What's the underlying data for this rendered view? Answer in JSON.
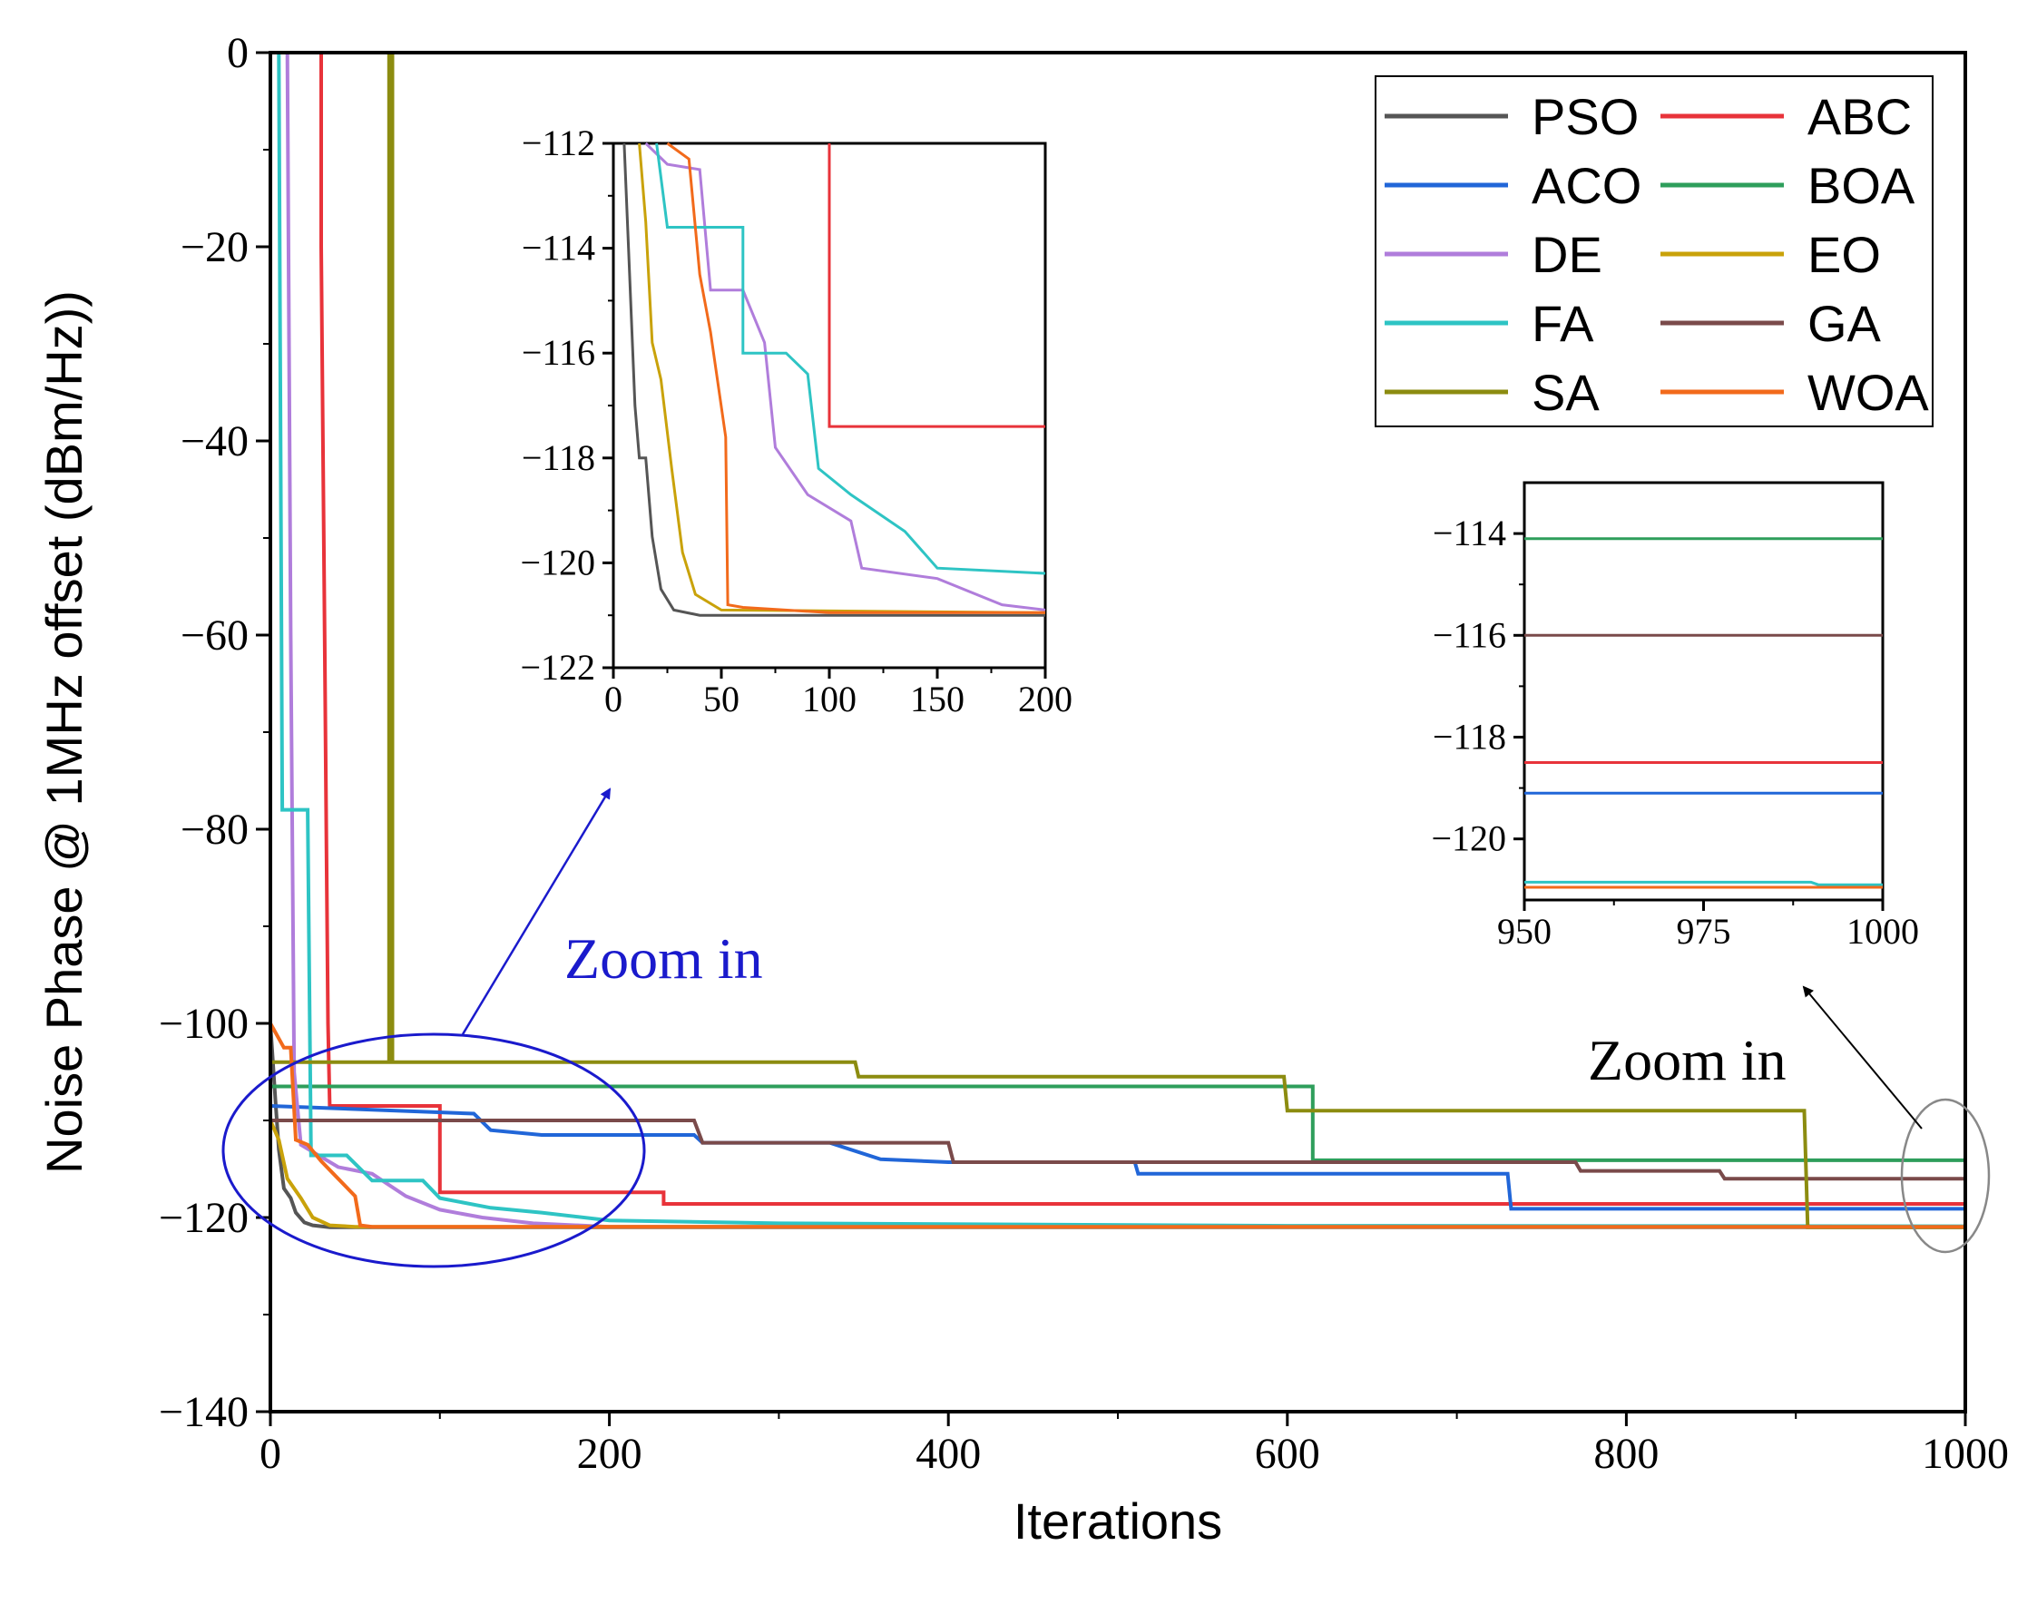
{
  "chart_data": [
    {
      "type": "line",
      "name": "main",
      "xlabel": "Iterations",
      "ylabel": "Noise Phase @ 1MHz offset (dBm/Hz))",
      "xlim": [
        0,
        1000
      ],
      "ylim": [
        -140,
        0
      ],
      "xticks": [
        "0",
        "200",
        "400",
        "600",
        "800",
        "1000"
      ],
      "yticks": [
        "0",
        "−20",
        "−40",
        "−60",
        "−80",
        "−100",
        "−120",
        "−140"
      ],
      "legend_position": "top-right",
      "series": [
        {
          "name": "PSO",
          "color": "#555555",
          "points": [
            [
              0,
              -100
            ],
            [
              3,
              -108
            ],
            [
              5,
              -113
            ],
            [
              8,
              -117
            ],
            [
              12,
              -118
            ],
            [
              15,
              -119.5
            ],
            [
              20,
              -120.5
            ],
            [
              25,
              -120.8
            ],
            [
              35,
              -121
            ],
            [
              1000,
              -121
            ]
          ]
        },
        {
          "name": "ABC",
          "color": "#e8333a",
          "points": [
            [
              0,
              0
            ],
            [
              30,
              0
            ],
            [
              30,
              -20
            ],
            [
              31,
              -40
            ],
            [
              32,
              -60
            ],
            [
              33,
              -80
            ],
            [
              34,
              -100
            ],
            [
              35,
              -108.5
            ],
            [
              100,
              -108.5
            ],
            [
              100,
              -117.4
            ],
            [
              232,
              -117.4
            ],
            [
              232,
              -118.6
            ],
            [
              1000,
              -118.6
            ]
          ]
        },
        {
          "name": "ACO",
          "color": "#2166d8",
          "points": [
            [
              0,
              -108.5
            ],
            [
              120,
              -109.3
            ],
            [
              130,
              -111
            ],
            [
              160,
              -111.5
            ],
            [
              250,
              -111.5
            ],
            [
              255,
              -112.3
            ],
            [
              330,
              -112.3
            ],
            [
              360,
              -114
            ],
            [
              400,
              -114.3
            ],
            [
              510,
              -114.3
            ],
            [
              512,
              -115.5
            ],
            [
              730,
              -115.5
            ],
            [
              732,
              -119.1
            ],
            [
              1000,
              -119.1
            ]
          ]
        },
        {
          "name": "BOA",
          "color": "#2e9e5b",
          "points": [
            [
              0,
              -106.5
            ],
            [
              615,
              -106.5
            ],
            [
              615,
              -114.1
            ],
            [
              1000,
              -114.1
            ]
          ]
        },
        {
          "name": "DE",
          "color": "#b07ddb",
          "points": [
            [
              0,
              0
            ],
            [
              10,
              0
            ],
            [
              12,
              -60
            ],
            [
              14,
              -105
            ],
            [
              18,
              -112.5
            ],
            [
              40,
              -114.8
            ],
            [
              60,
              -115.5
            ],
            [
              80,
              -117.8
            ],
            [
              100,
              -119.2
            ],
            [
              125,
              -120
            ],
            [
              155,
              -120.6
            ],
            [
              200,
              -120.95
            ],
            [
              1000,
              -120.95
            ]
          ]
        },
        {
          "name": "EO",
          "color": "#c9a20a",
          "points": [
            [
              0,
              -110
            ],
            [
              5,
              -112
            ],
            [
              10,
              -116
            ],
            [
              18,
              -118
            ],
            [
              25,
              -120
            ],
            [
              35,
              -120.8
            ],
            [
              50,
              -120.95
            ],
            [
              1000,
              -120.95
            ]
          ]
        },
        {
          "name": "FA",
          "color": "#2ec4c4",
          "points": [
            [
              0,
              0
            ],
            [
              5,
              0
            ],
            [
              7,
              -78
            ],
            [
              22,
              -78
            ],
            [
              24,
              -113.6
            ],
            [
              45,
              -113.6
            ],
            [
              60,
              -116.2
            ],
            [
              90,
              -116.2
            ],
            [
              100,
              -118
            ],
            [
              130,
              -119
            ],
            [
              160,
              -119.5
            ],
            [
              200,
              -120.3
            ],
            [
              300,
              -120.6
            ],
            [
              600,
              -120.85
            ],
            [
              1000,
              -120.9
            ]
          ]
        },
        {
          "name": "GA",
          "color": "#7a4a4a",
          "points": [
            [
              0,
              -110
            ],
            [
              250,
              -110
            ],
            [
              255,
              -112.3
            ],
            [
              400,
              -112.3
            ],
            [
              403,
              -114.3
            ],
            [
              770,
              -114.3
            ],
            [
              773,
              -115.2
            ],
            [
              855,
              -115.2
            ],
            [
              858,
              -116
            ],
            [
              1000,
              -116
            ]
          ]
        },
        {
          "name": "SA",
          "color": "#8c8c10",
          "points": [
            [
              0,
              -104
            ],
            [
              70,
              -104
            ],
            [
              70,
              0
            ],
            [
              72,
              0
            ],
            [
              72,
              -104
            ],
            [
              345,
              -104
            ],
            [
              347,
              -105.5
            ],
            [
              598,
              -105.5
            ],
            [
              600,
              -109
            ],
            [
              905,
              -109
            ],
            [
              907,
              -121
            ],
            [
              1000,
              -121
            ]
          ]
        },
        {
          "name": "WOA",
          "color": "#f26a1b",
          "points": [
            [
              0,
              -100
            ],
            [
              8,
              -102.5
            ],
            [
              12,
              -102.5
            ],
            [
              15,
              -112
            ],
            [
              22,
              -112.5
            ],
            [
              30,
              -114.2
            ],
            [
              40,
              -116
            ],
            [
              50,
              -117.8
            ],
            [
              53,
              -120.8
            ],
            [
              60,
              -120.95
            ],
            [
              1000,
              -120.95
            ]
          ]
        }
      ]
    },
    {
      "type": "line",
      "name": "inset-left",
      "xlim": [
        0,
        200
      ],
      "ylim": [
        -122,
        -112
      ],
      "xticks": [
        "0",
        "50",
        "100",
        "150",
        "200"
      ],
      "yticks": [
        "−112",
        "−114",
        "−116",
        "−118",
        "−120",
        "−122"
      ],
      "series": [
        {
          "name": "PSO",
          "color": "#555555",
          "points": [
            [
              5,
              -112
            ],
            [
              7,
              -114
            ],
            [
              10,
              -117
            ],
            [
              12,
              -118
            ],
            [
              15,
              -118
            ],
            [
              18,
              -119.5
            ],
            [
              22,
              -120.5
            ],
            [
              28,
              -120.9
            ],
            [
              40,
              -121
            ],
            [
              200,
              -121
            ]
          ]
        },
        {
          "name": "ABC",
          "color": "#e8333a",
          "points": [
            [
              100,
              -112
            ],
            [
              100,
              -117.4
            ],
            [
              200,
              -117.4
            ]
          ]
        },
        {
          "name": "DE",
          "color": "#b07ddb",
          "points": [
            [
              15,
              -112
            ],
            [
              25,
              -112.4
            ],
            [
              40,
              -112.5
            ],
            [
              45,
              -114.8
            ],
            [
              60,
              -114.8
            ],
            [
              70,
              -115.8
            ],
            [
              75,
              -117.8
            ],
            [
              90,
              -118.7
            ],
            [
              110,
              -119.2
            ],
            [
              115,
              -120.1
            ],
            [
              150,
              -120.3
            ],
            [
              180,
              -120.8
            ],
            [
              200,
              -120.9
            ]
          ]
        },
        {
          "name": "EO",
          "color": "#c9a20a",
          "points": [
            [
              12,
              -112
            ],
            [
              15,
              -113.5
            ],
            [
              18,
              -115.8
            ],
            [
              22,
              -116.5
            ],
            [
              27,
              -118.2
            ],
            [
              32,
              -119.8
            ],
            [
              38,
              -120.6
            ],
            [
              50,
              -120.9
            ],
            [
              200,
              -120.95
            ]
          ]
        },
        {
          "name": "FA",
          "color": "#2ec4c4",
          "points": [
            [
              20,
              -112
            ],
            [
              25,
              -113.6
            ],
            [
              40,
              -113.6
            ],
            [
              60,
              -113.6
            ],
            [
              60,
              -116
            ],
            [
              80,
              -116
            ],
            [
              90,
              -116.4
            ],
            [
              95,
              -118.2
            ],
            [
              110,
              -118.7
            ],
            [
              135,
              -119.4
            ],
            [
              150,
              -120.1
            ],
            [
              200,
              -120.2
            ]
          ]
        },
        {
          "name": "WOA",
          "color": "#f26a1b",
          "points": [
            [
              25,
              -112
            ],
            [
              35,
              -112.3
            ],
            [
              40,
              -114.5
            ],
            [
              45,
              -115.6
            ],
            [
              52,
              -117.6
            ],
            [
              53,
              -120.8
            ],
            [
              60,
              -120.85
            ],
            [
              100,
              -120.95
            ],
            [
              200,
              -120.95
            ]
          ]
        }
      ]
    },
    {
      "type": "line",
      "name": "inset-right",
      "xlim": [
        950,
        1000
      ],
      "ylim": [
        -121.2,
        -113
      ],
      "xticks": [
        "950",
        "975",
        "1000"
      ],
      "yticks": [
        "−114",
        "−116",
        "−118",
        "−120"
      ],
      "series": [
        {
          "name": "BOA",
          "color": "#2e9e5b",
          "points": [
            [
              950,
              -114.1
            ],
            [
              1000,
              -114.1
            ]
          ]
        },
        {
          "name": "GA",
          "color": "#7a4a4a",
          "points": [
            [
              950,
              -116
            ],
            [
              1000,
              -116
            ]
          ]
        },
        {
          "name": "ABC",
          "color": "#e8333a",
          "points": [
            [
              950,
              -118.5
            ],
            [
              1000,
              -118.5
            ]
          ]
        },
        {
          "name": "ACO",
          "color": "#2166d8",
          "points": [
            [
              950,
              -119.1
            ],
            [
              1000,
              -119.1
            ]
          ]
        },
        {
          "name": "FA",
          "color": "#2ec4c4",
          "points": [
            [
              950,
              -120.85
            ],
            [
              990,
              -120.85
            ],
            [
              991,
              -120.9
            ],
            [
              1000,
              -120.9
            ]
          ]
        },
        {
          "name": "WOA",
          "color": "#f26a1b",
          "points": [
            [
              950,
              -120.95
            ],
            [
              1000,
              -120.95
            ]
          ]
        }
      ]
    }
  ],
  "annotations": {
    "zoom_left": {
      "label": "Zoom in",
      "color": "#1a1acc"
    },
    "zoom_right": {
      "label": "Zoom in",
      "color": "#000000"
    }
  }
}
